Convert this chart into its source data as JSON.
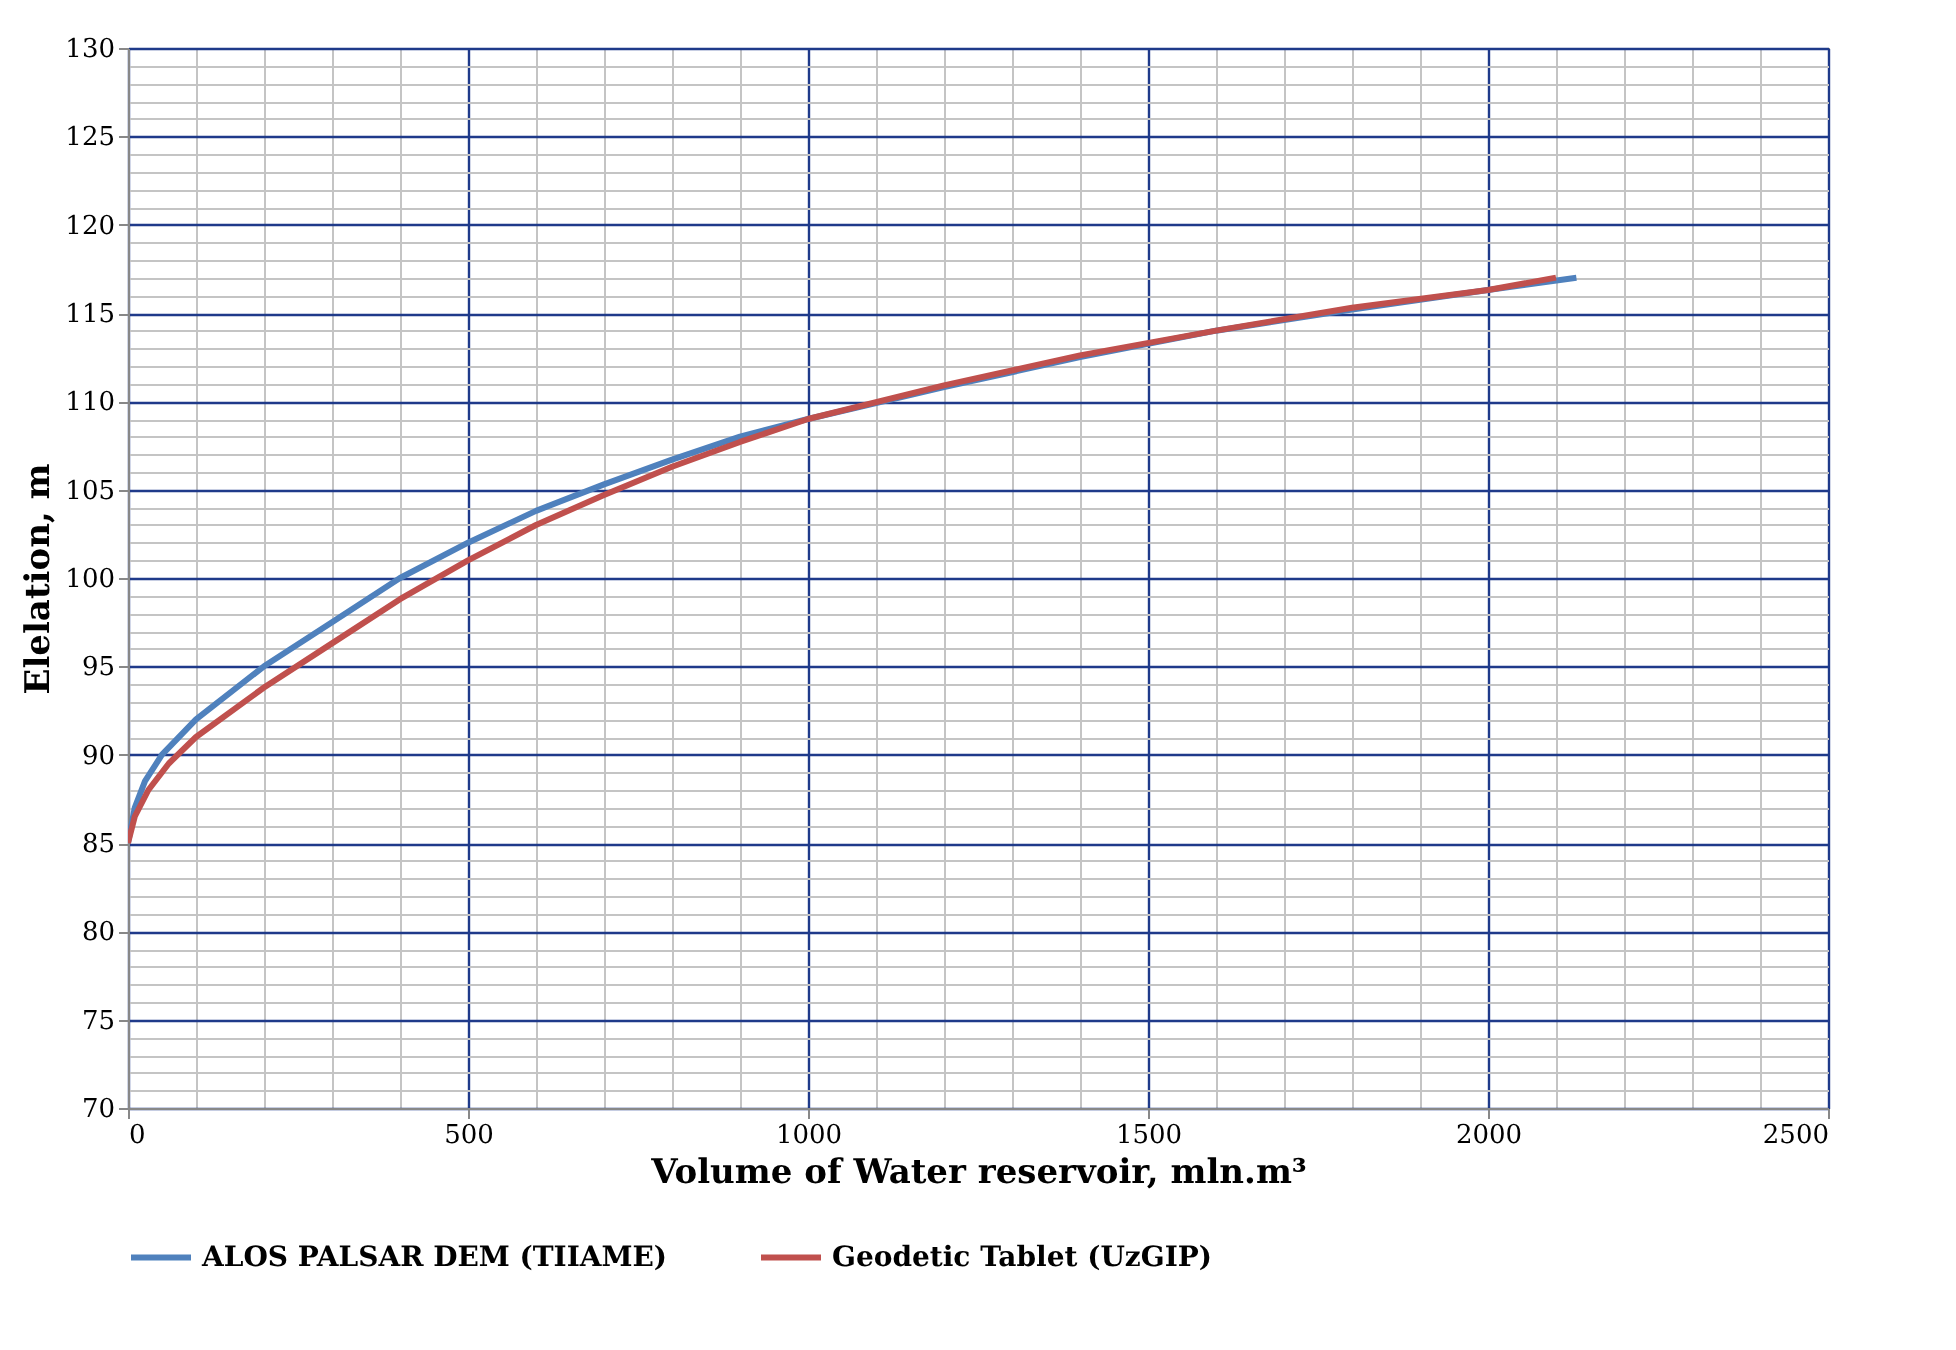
{
  "chart_data": {
    "type": "line",
    "xlabel": "Volume of  Water reservoir, mln.m³",
    "ylabel": "Elelation, m",
    "xlim": [
      0,
      2500
    ],
    "ylim": [
      70,
      130
    ],
    "xticks": [
      0,
      {
        "value": 100,
        "label": null
      },
      {
        "value": 200,
        "label": null
      },
      {
        "value": 300,
        "label": null
      },
      {
        "value": 400,
        "label": null
      },
      500,
      {
        "value": 600,
        "label": null
      },
      {
        "value": 700,
        "label": null
      },
      {
        "value": 800,
        "label": null
      },
      {
        "value": 900,
        "label": null
      },
      1000,
      {
        "value": 1100,
        "label": null
      },
      {
        "value": 1200,
        "label": null
      },
      {
        "value": 1300,
        "label": null
      },
      {
        "value": 1400,
        "label": null
      },
      1500,
      {
        "value": 1600,
        "label": null
      },
      {
        "value": 1700,
        "label": null
      },
      {
        "value": 1800,
        "label": null
      },
      {
        "value": 1900,
        "label": null
      },
      2000,
      {
        "value": 2100,
        "label": null
      },
      {
        "value": 2200,
        "label": null
      },
      {
        "value": 2300,
        "label": null
      },
      {
        "value": 2400,
        "label": null
      },
      2500
    ],
    "yticks": [
      70,
      {
        "value": 71,
        "label": null
      },
      {
        "value": 72,
        "label": null
      },
      {
        "value": 73,
        "label": null
      },
      {
        "value": 74,
        "label": null
      },
      75,
      {
        "value": 76,
        "label": null
      },
      {
        "value": 77,
        "label": null
      },
      {
        "value": 78,
        "label": null
      },
      {
        "value": 79,
        "label": null
      },
      80,
      {
        "value": 81,
        "label": null
      },
      {
        "value": 82,
        "label": null
      },
      {
        "value": 83,
        "label": null
      },
      {
        "value": 84,
        "label": null
      },
      85,
      {
        "value": 86,
        "label": null
      },
      {
        "value": 87,
        "label": null
      },
      {
        "value": 88,
        "label": null
      },
      {
        "value": 89,
        "label": null
      },
      90,
      {
        "value": 91,
        "label": null
      },
      {
        "value": 92,
        "label": null
      },
      {
        "value": 93,
        "label": null
      },
      {
        "value": 94,
        "label": null
      },
      95,
      {
        "value": 96,
        "label": null
      },
      {
        "value": 97,
        "label": null
      },
      {
        "value": 98,
        "label": null
      },
      {
        "value": 99,
        "label": null
      },
      100,
      {
        "value": 101,
        "label": null
      },
      {
        "value": 102,
        "label": null
      },
      {
        "value": 103,
        "label": null
      },
      {
        "value": 104,
        "label": null
      },
      105,
      {
        "value": 106,
        "label": null
      },
      {
        "value": 107,
        "label": null
      },
      {
        "value": 108,
        "label": null
      },
      {
        "value": 109,
        "label": null
      },
      110,
      {
        "value": 111,
        "label": null
      },
      {
        "value": 112,
        "label": null
      },
      {
        "value": 113,
        "label": null
      },
      {
        "value": 114,
        "label": null
      },
      115,
      {
        "value": 116,
        "label": null
      },
      {
        "value": 117,
        "label": null
      },
      {
        "value": 118,
        "label": null
      },
      {
        "value": 119,
        "label": null
      },
      120,
      {
        "value": 121,
        "label": null
      },
      {
        "value": 122,
        "label": null
      },
      {
        "value": 123,
        "label": null
      },
      {
        "value": 124,
        "label": null
      },
      125,
      {
        "value": 126,
        "label": null
      },
      {
        "value": 127,
        "label": null
      },
      {
        "value": 128,
        "label": null
      },
      {
        "value": 129,
        "label": null
      },
      130
    ],
    "grid": true,
    "legend": "bottom",
    "line_style": "solid",
    "series": [
      {
        "name": "ALOS PALSAR DEM (TIIAME)",
        "color": "#4f81bd",
        "x": [
          0,
          10,
          25,
          50,
          100,
          200,
          300,
          400,
          500,
          600,
          700,
          800,
          900,
          1000,
          1200,
          1400,
          1600,
          1800,
          2000,
          2130
        ],
        "values": [
          85,
          87,
          88.5,
          90,
          92,
          95,
          97.5,
          100,
          102,
          103.8,
          105.3,
          106.7,
          108,
          109,
          110.8,
          112.5,
          114,
          115.2,
          116.3,
          117
        ]
      },
      {
        "name": "Geodetic Tablet (UzGIP)",
        "color": "#c0504d",
        "x": [
          0,
          10,
          30,
          60,
          100,
          200,
          300,
          400,
          500,
          600,
          700,
          800,
          900,
          1000,
          1200,
          1400,
          1600,
          1800,
          2000,
          2100
        ],
        "values": [
          85,
          86.5,
          88,
          89.5,
          91,
          93.8,
          96.3,
          98.8,
          101,
          103,
          104.7,
          106.3,
          107.7,
          109,
          110.9,
          112.6,
          114,
          115.3,
          116.3,
          117
        ]
      }
    ]
  }
}
